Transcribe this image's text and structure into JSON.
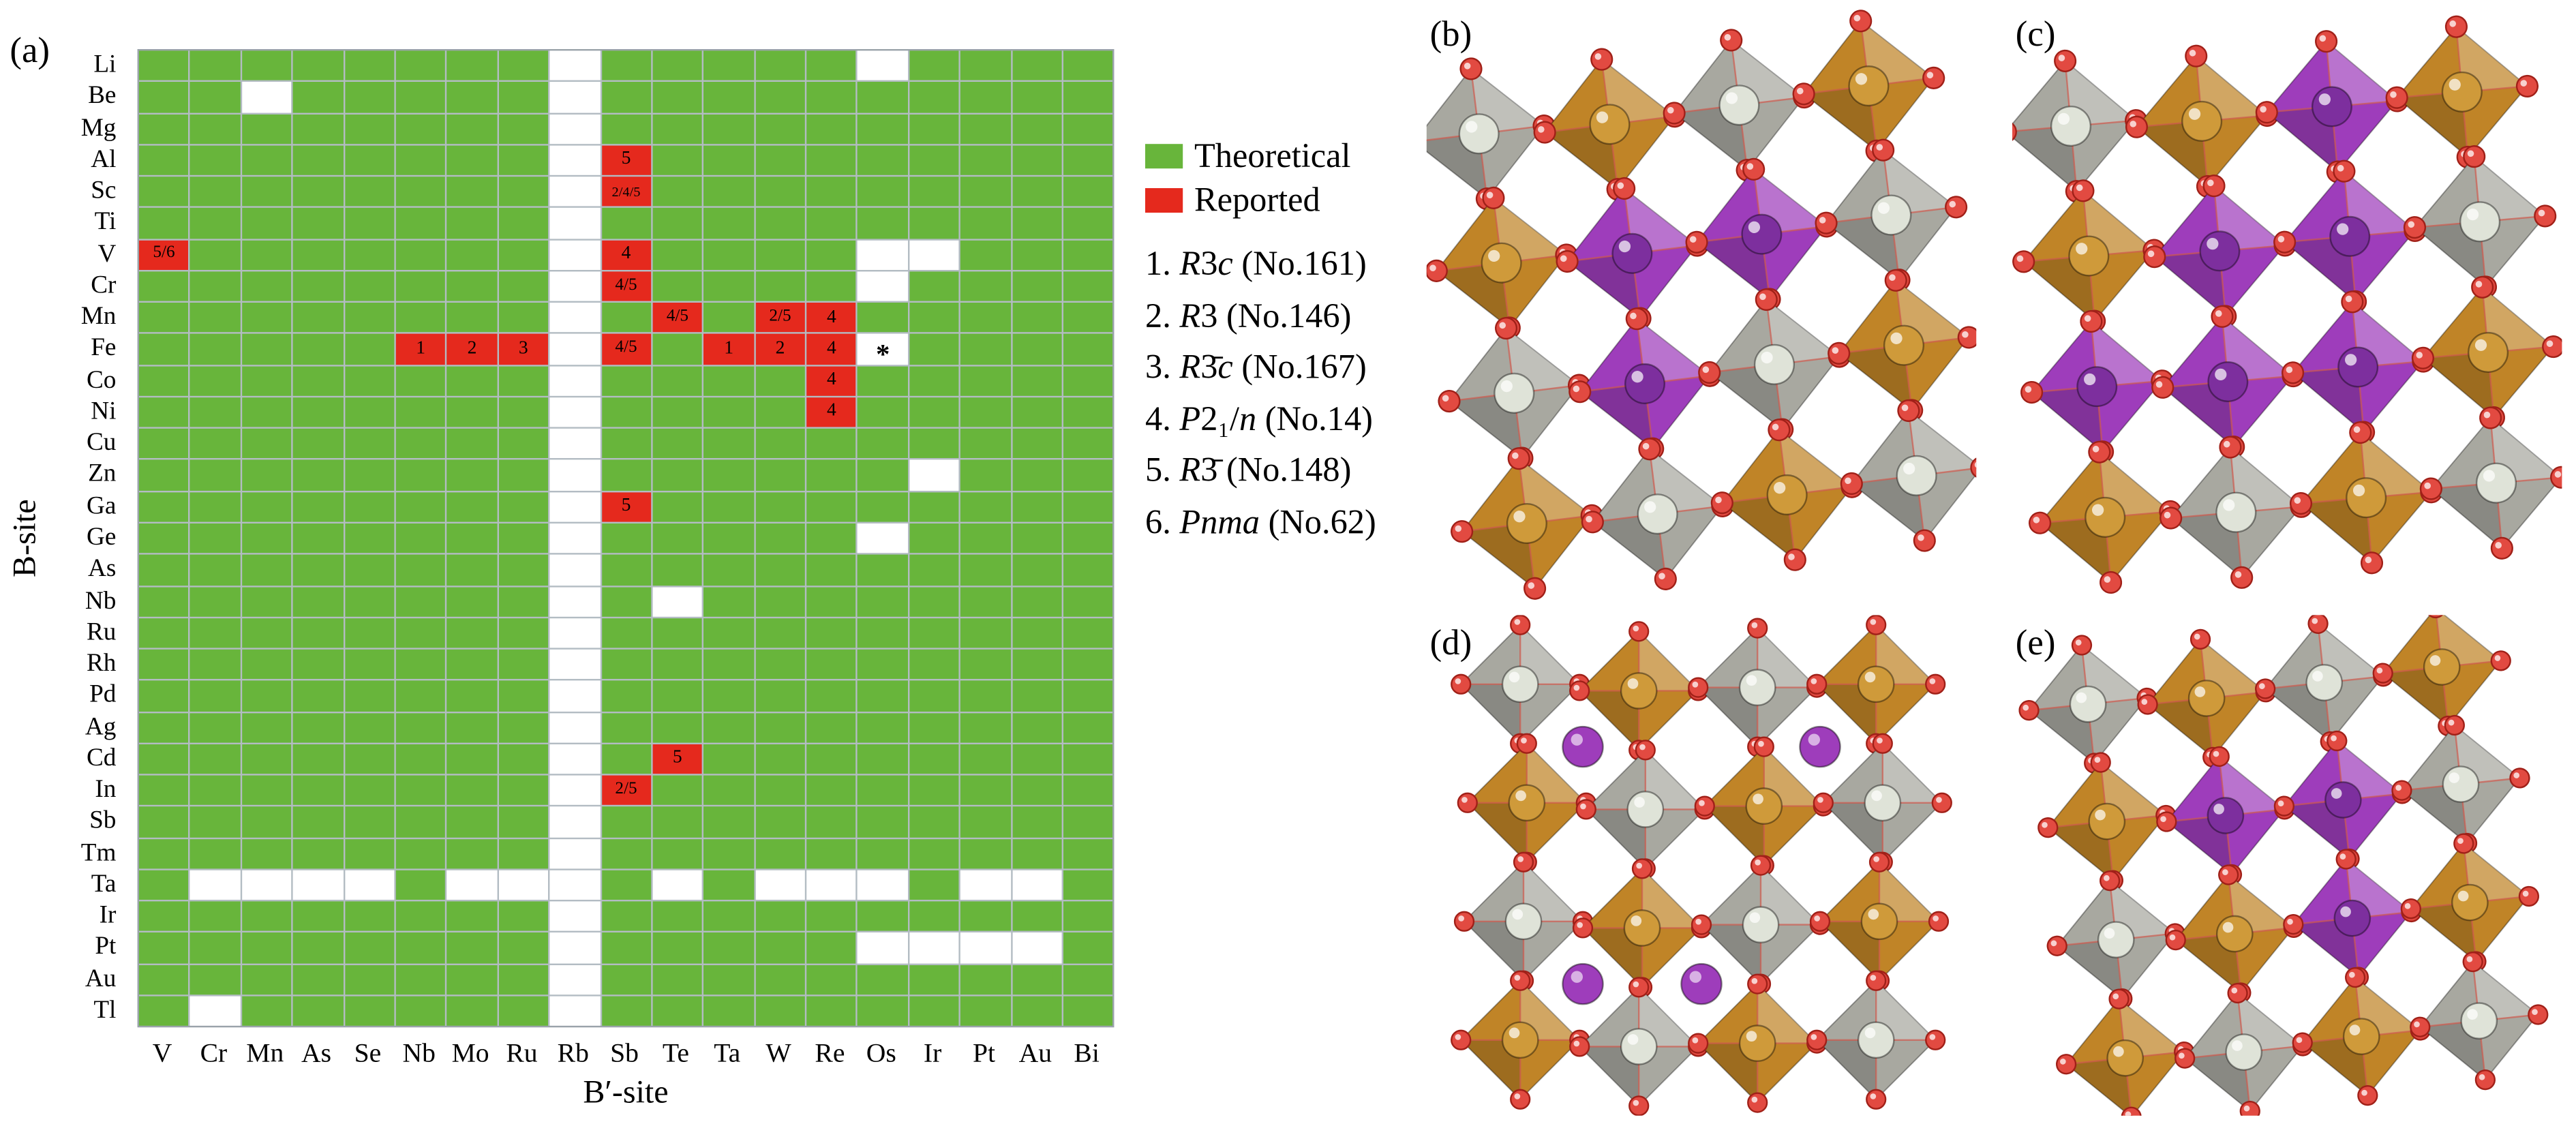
{
  "panels": {
    "a": "(a)"
  },
  "chart_data": {
    "type": "heatmap",
    "xlabel": "B′-site",
    "ylabel": "B-site",
    "legend": [
      {
        "label": "Theoretical",
        "color": "#68b53b"
      },
      {
        "label": "Reported",
        "color": "#e5291d"
      }
    ],
    "cell_states": {
      "g": "Theoretical",
      "w": "none",
      "r": "Reported"
    },
    "asterisk_marker": "*",
    "rows": [
      "Li",
      "Be",
      "Mg",
      "Al",
      "Sc",
      "Ti",
      "V",
      "Cr",
      "Mn",
      "Fe",
      "Co",
      "Ni",
      "Cu",
      "Zn",
      "Ga",
      "Ge",
      "As",
      "Nb",
      "Ru",
      "Rh",
      "Pd",
      "Ag",
      "Cd",
      "In",
      "Sb",
      "Tm",
      "Ta",
      "Ir",
      "Pt",
      "Au",
      "Tl"
    ],
    "cols": [
      "V",
      "Cr",
      "Mn",
      "As",
      "Se",
      "Nb",
      "Mo",
      "Ru",
      "Rb",
      "Sb",
      "Te",
      "Ta",
      "W",
      "Re",
      "Os",
      "Ir",
      "Pt",
      "Au",
      "Bi"
    ],
    "cells": [
      [
        "g",
        "g",
        "g",
        "g",
        "g",
        "g",
        "g",
        "g",
        "w",
        "g",
        "g",
        "g",
        "g",
        "g",
        "w",
        "g",
        "g",
        "g",
        "g"
      ],
      [
        "g",
        "g",
        "w",
        "g",
        "g",
        "g",
        "g",
        "g",
        "w",
        "g",
        "g",
        "g",
        "g",
        "g",
        "g",
        "g",
        "g",
        "g",
        "g"
      ],
      [
        "g",
        "g",
        "g",
        "g",
        "g",
        "g",
        "g",
        "g",
        "w",
        "g",
        "g",
        "g",
        "g",
        "g",
        "g",
        "g",
        "g",
        "g",
        "g"
      ],
      [
        "g",
        "g",
        "g",
        "g",
        "g",
        "g",
        "g",
        "g",
        "w",
        "r:5",
        "g",
        "g",
        "g",
        "g",
        "g",
        "g",
        "g",
        "g",
        "g"
      ],
      [
        "g",
        "g",
        "g",
        "g",
        "g",
        "g",
        "g",
        "g",
        "w",
        "r:2/4/5",
        "g",
        "g",
        "g",
        "g",
        "g",
        "g",
        "g",
        "g",
        "g"
      ],
      [
        "g",
        "g",
        "g",
        "g",
        "g",
        "g",
        "g",
        "g",
        "w",
        "g",
        "g",
        "g",
        "g",
        "g",
        "g",
        "g",
        "g",
        "g",
        "g"
      ],
      [
        "r:5/6",
        "g",
        "g",
        "g",
        "g",
        "g",
        "g",
        "g",
        "w",
        "r:4",
        "g",
        "g",
        "g",
        "g",
        "w",
        "w",
        "g",
        "g",
        "g"
      ],
      [
        "g",
        "g",
        "g",
        "g",
        "g",
        "g",
        "g",
        "g",
        "w",
        "r:4/5",
        "g",
        "g",
        "g",
        "g",
        "w",
        "g",
        "g",
        "g",
        "g"
      ],
      [
        "g",
        "g",
        "g",
        "g",
        "g",
        "g",
        "g",
        "g",
        "w",
        "g",
        "r:4/5",
        "g",
        "r:2/5",
        "r:4",
        "g",
        "g",
        "g",
        "g",
        "g"
      ],
      [
        "g",
        "g",
        "g",
        "g",
        "g",
        "r:1",
        "r:2",
        "r:3",
        "w",
        "r:4/5",
        "g",
        "r:1",
        "r:2",
        "r:4",
        "w*",
        "g",
        "g",
        "g",
        "g"
      ],
      [
        "g",
        "g",
        "g",
        "g",
        "g",
        "g",
        "g",
        "g",
        "w",
        "g",
        "g",
        "g",
        "g",
        "r:4",
        "g",
        "g",
        "g",
        "g",
        "g"
      ],
      [
        "g",
        "g",
        "g",
        "g",
        "g",
        "g",
        "g",
        "g",
        "w",
        "g",
        "g",
        "g",
        "g",
        "r:4",
        "g",
        "g",
        "g",
        "g",
        "g"
      ],
      [
        "g",
        "g",
        "g",
        "g",
        "g",
        "g",
        "g",
        "g",
        "w",
        "g",
        "g",
        "g",
        "g",
        "g",
        "g",
        "g",
        "g",
        "g",
        "g"
      ],
      [
        "g",
        "g",
        "g",
        "g",
        "g",
        "g",
        "g",
        "g",
        "w",
        "g",
        "g",
        "g",
        "g",
        "g",
        "g",
        "w",
        "g",
        "g",
        "g"
      ],
      [
        "g",
        "g",
        "g",
        "g",
        "g",
        "g",
        "g",
        "g",
        "w",
        "r:5",
        "g",
        "g",
        "g",
        "g",
        "g",
        "g",
        "g",
        "g",
        "g"
      ],
      [
        "g",
        "g",
        "g",
        "g",
        "g",
        "g",
        "g",
        "g",
        "w",
        "g",
        "g",
        "g",
        "g",
        "g",
        "w",
        "g",
        "g",
        "g",
        "g"
      ],
      [
        "g",
        "g",
        "g",
        "g",
        "g",
        "g",
        "g",
        "g",
        "w",
        "g",
        "g",
        "g",
        "g",
        "g",
        "g",
        "g",
        "g",
        "g",
        "g"
      ],
      [
        "g",
        "g",
        "g",
        "g",
        "g",
        "g",
        "g",
        "g",
        "w",
        "g",
        "w",
        "g",
        "g",
        "g",
        "g",
        "g",
        "g",
        "g",
        "g"
      ],
      [
        "g",
        "g",
        "g",
        "g",
        "g",
        "g",
        "g",
        "g",
        "w",
        "g",
        "g",
        "g",
        "g",
        "g",
        "g",
        "g",
        "g",
        "g",
        "g"
      ],
      [
        "g",
        "g",
        "g",
        "g",
        "g",
        "g",
        "g",
        "g",
        "w",
        "g",
        "g",
        "g",
        "g",
        "g",
        "g",
        "g",
        "g",
        "g",
        "g"
      ],
      [
        "g",
        "g",
        "g",
        "g",
        "g",
        "g",
        "g",
        "g",
        "w",
        "g",
        "g",
        "g",
        "g",
        "g",
        "g",
        "g",
        "g",
        "g",
        "g"
      ],
      [
        "g",
        "g",
        "g",
        "g",
        "g",
        "g",
        "g",
        "g",
        "w",
        "g",
        "g",
        "g",
        "g",
        "g",
        "g",
        "g",
        "g",
        "g",
        "g"
      ],
      [
        "g",
        "g",
        "g",
        "g",
        "g",
        "g",
        "g",
        "g",
        "w",
        "g",
        "r:5",
        "g",
        "g",
        "g",
        "g",
        "g",
        "g",
        "g",
        "g"
      ],
      [
        "g",
        "g",
        "g",
        "g",
        "g",
        "g",
        "g",
        "g",
        "w",
        "r:2/5",
        "g",
        "g",
        "g",
        "g",
        "g",
        "g",
        "g",
        "g",
        "g"
      ],
      [
        "g",
        "g",
        "g",
        "g",
        "g",
        "g",
        "g",
        "g",
        "w",
        "g",
        "g",
        "g",
        "g",
        "g",
        "g",
        "g",
        "g",
        "g",
        "g"
      ],
      [
        "g",
        "g",
        "g",
        "g",
        "g",
        "g",
        "g",
        "g",
        "w",
        "g",
        "g",
        "g",
        "g",
        "g",
        "g",
        "g",
        "g",
        "g",
        "g"
      ],
      [
        "g",
        "w",
        "w",
        "w",
        "w",
        "g",
        "w",
        "w",
        "w",
        "g",
        "w",
        "g",
        "w",
        "w",
        "w",
        "g",
        "w",
        "w",
        "g"
      ],
      [
        "g",
        "g",
        "g",
        "g",
        "g",
        "g",
        "g",
        "g",
        "w",
        "g",
        "g",
        "g",
        "g",
        "g",
        "g",
        "g",
        "g",
        "g",
        "g"
      ],
      [
        "g",
        "g",
        "g",
        "g",
        "g",
        "g",
        "g",
        "g",
        "w",
        "g",
        "g",
        "g",
        "g",
        "g",
        "w",
        "w",
        "w",
        "w",
        "g"
      ],
      [
        "g",
        "g",
        "g",
        "g",
        "g",
        "g",
        "g",
        "g",
        "w",
        "g",
        "g",
        "g",
        "g",
        "g",
        "g",
        "g",
        "g",
        "g",
        "g"
      ],
      [
        "g",
        "w",
        "g",
        "g",
        "g",
        "g",
        "g",
        "g",
        "w",
        "g",
        "g",
        "g",
        "g",
        "g",
        "g",
        "g",
        "g",
        "g",
        "g"
      ]
    ]
  },
  "space_groups": [
    {
      "n": "1.",
      "symbol": "R3c",
      "no": "(No.161)"
    },
    {
      "n": "2.",
      "symbol": "R3",
      "no": "(No.146)"
    },
    {
      "n": "3.",
      "symbol": "R3̄c",
      "no": "(No.167)"
    },
    {
      "n": "4.",
      "symbol": "P2₁/n",
      "no": "(No.14)"
    },
    {
      "n": "5.",
      "symbol": "R3̄",
      "no": "(No.148)"
    },
    {
      "n": "6.",
      "symbol": "Pnma",
      "no": "(No.62)"
    }
  ],
  "structures": [
    {
      "label": "(b)",
      "purple_style": "polyhedra",
      "purple_cells": [
        [
          1,
          1
        ],
        [
          2,
          1
        ],
        [
          1,
          2
        ]
      ],
      "rotate": -7
    },
    {
      "label": "(c)",
      "purple_style": "polyhedra",
      "purple_cells": [
        [
          1,
          1
        ],
        [
          2,
          1
        ],
        [
          1,
          2
        ],
        [
          2,
          2
        ],
        [
          0,
          2
        ],
        [
          2,
          0
        ]
      ],
      "rotate": -5
    },
    {
      "label": "(d)",
      "purple_style": "spheres",
      "purple_cells": [
        [
          0,
          0
        ],
        [
          2,
          0
        ],
        [
          0,
          2
        ],
        [
          1,
          2
        ]
      ],
      "rotate": 0
    },
    {
      "label": "(e)",
      "purple_style": "polyhedra",
      "purple_cells": [
        [
          1,
          1
        ],
        [
          2,
          1
        ],
        [
          2,
          2
        ]
      ],
      "rotate": -6
    }
  ],
  "structure_colors": {
    "gray": "#a8a8a0",
    "orange": "#c08427",
    "purple": "#9e3dbb",
    "oxygen": "#e24a41",
    "oxygen_dark": "#a02018",
    "cation_light": "#dfe3d8",
    "cation_orange": "#cf9a3a",
    "cation_purple": "#7d2f9e",
    "bond": "#cf5a4e"
  }
}
